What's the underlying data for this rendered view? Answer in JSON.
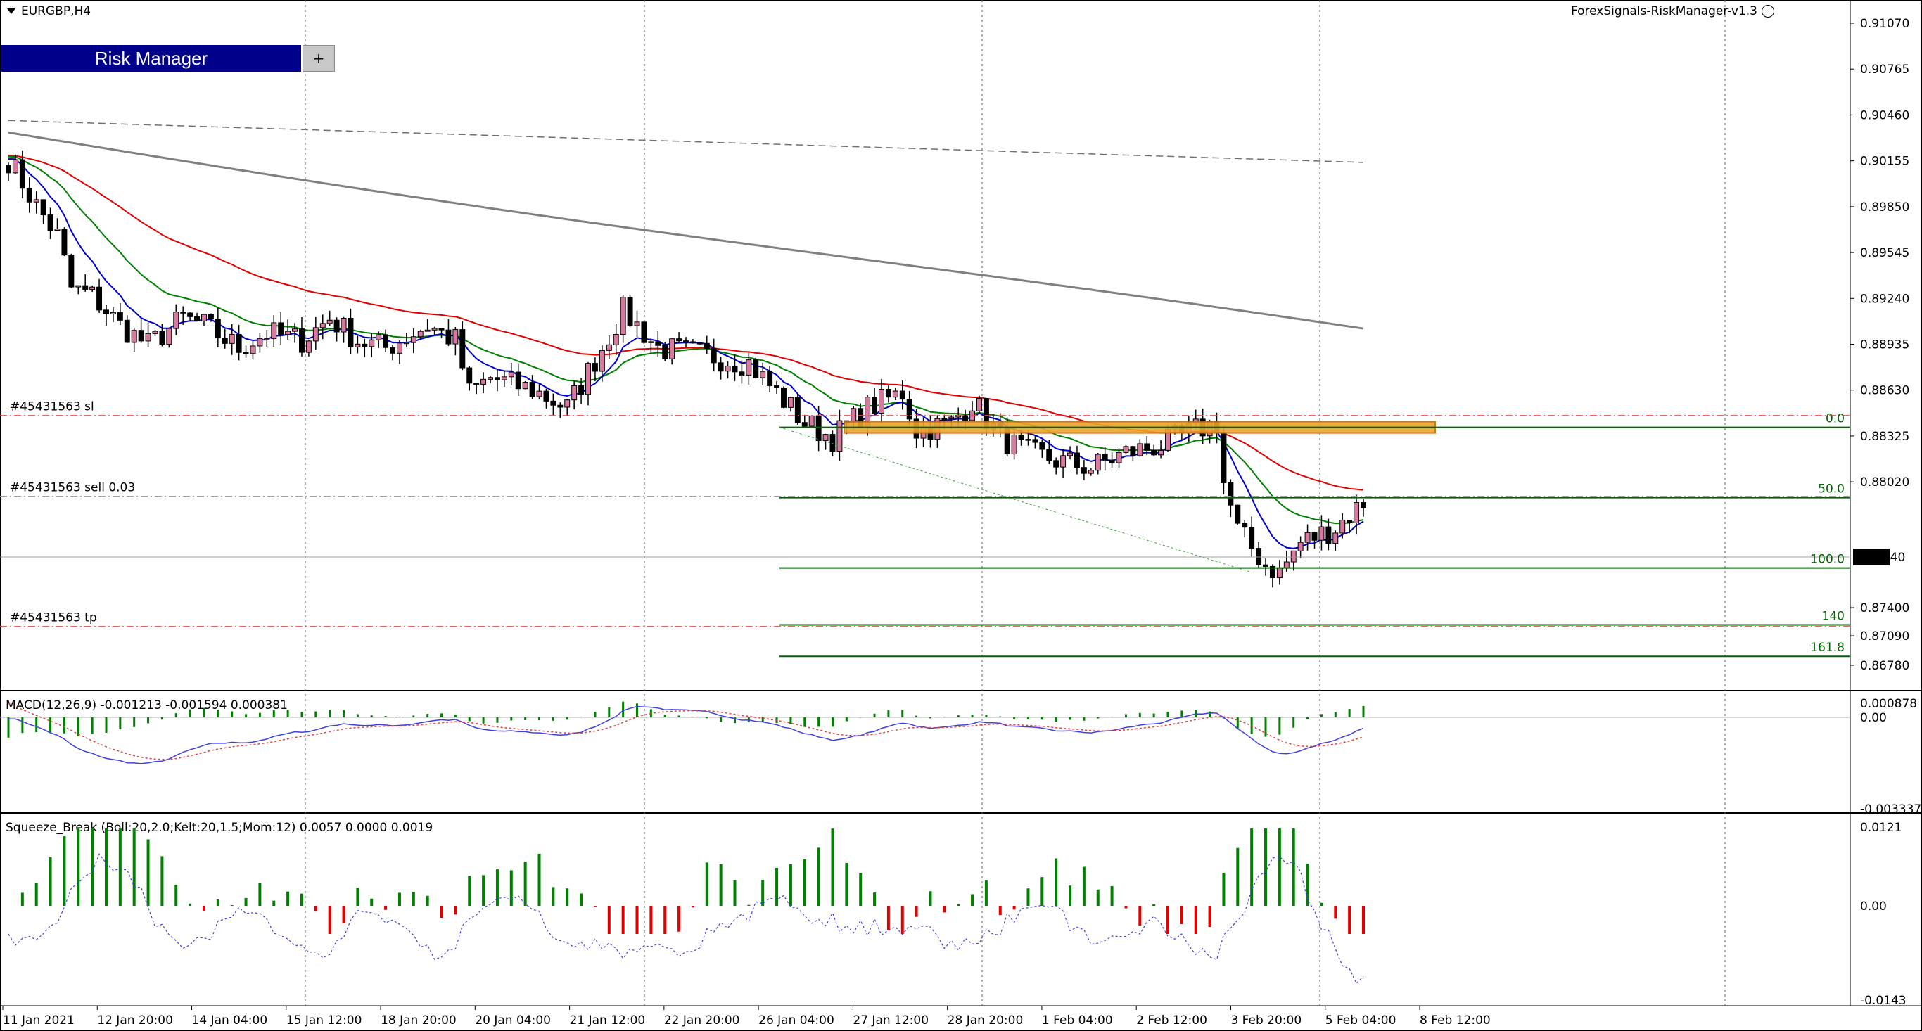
{
  "symbol": {
    "title": "EURGBP,H4"
  },
  "expert": {
    "name": "ForexSignals-RiskManager-v1.3"
  },
  "risk_manager": {
    "title": "Risk Manager",
    "expand_label": "+"
  },
  "price_axis": {
    "labels": [
      "0.91070",
      "0.90765",
      "0.90460",
      "0.90155",
      "0.89850",
      "0.89545",
      "0.89240",
      "0.88935",
      "0.88630",
      "0.88325",
      "0.88020",
      "0.87740",
      "0.87400",
      "0.87090",
      "0.86780"
    ],
    "current_price": "0.87740"
  },
  "orders": {
    "sl": {
      "label": "#45431563 sl",
      "price": 0.8845
    },
    "sell": {
      "label": "#45431563 sell 0.03",
      "price": 0.8791
    },
    "tp": {
      "label": "#45431563 tp",
      "price": 0.8704
    }
  },
  "fibonacci": [
    {
      "label": "0.0",
      "price": 0.8837
    },
    {
      "label": "50.0",
      "price": 0.879
    },
    {
      "label": "100.0",
      "price": 0.8743
    },
    {
      "label": "140",
      "price": 0.8705
    },
    {
      "label": "161.8",
      "price": 0.8684
    }
  ],
  "macd": {
    "title": "MACD(12,26,9) -0.001213 -0.001594 0.000381",
    "axis_labels": [
      "0.000878",
      "0.00",
      "-0.003337"
    ]
  },
  "squeeze": {
    "title": "Squeeze_Break (Boll:20,2.0;Kelt:20,1.5;Mom:12) 0.0057 0.0000 0.0019",
    "axis_labels": [
      "0.0121",
      "0.00",
      "-0.0143"
    ]
  },
  "time_axis": {
    "labels": [
      "11 Jan 2021",
      "12 Jan 20:00",
      "14 Jan 04:00",
      "15 Jan 12:00",
      "18 Jan 20:00",
      "20 Jan 04:00",
      "21 Jan 12:00",
      "22 Jan 20:00",
      "26 Jan 04:00",
      "27 Jan 12:00",
      "28 Jan 20:00",
      "1 Feb 04:00",
      "2 Feb 12:00",
      "3 Feb 20:00",
      "5 Feb 04:00",
      "8 Feb 12:00"
    ]
  },
  "colors": {
    "bull": "#d87aa0",
    "bear": "#000000",
    "ema_fast": "#0000cd",
    "ema_mid": "#008000",
    "ema_slow": "#e00000",
    "sma_long": "#808080",
    "fib": "#006400",
    "order": "#e05050",
    "zone": "#f0a030",
    "hist_pos": "#008000",
    "hist_neg": "#e00000"
  }
}
